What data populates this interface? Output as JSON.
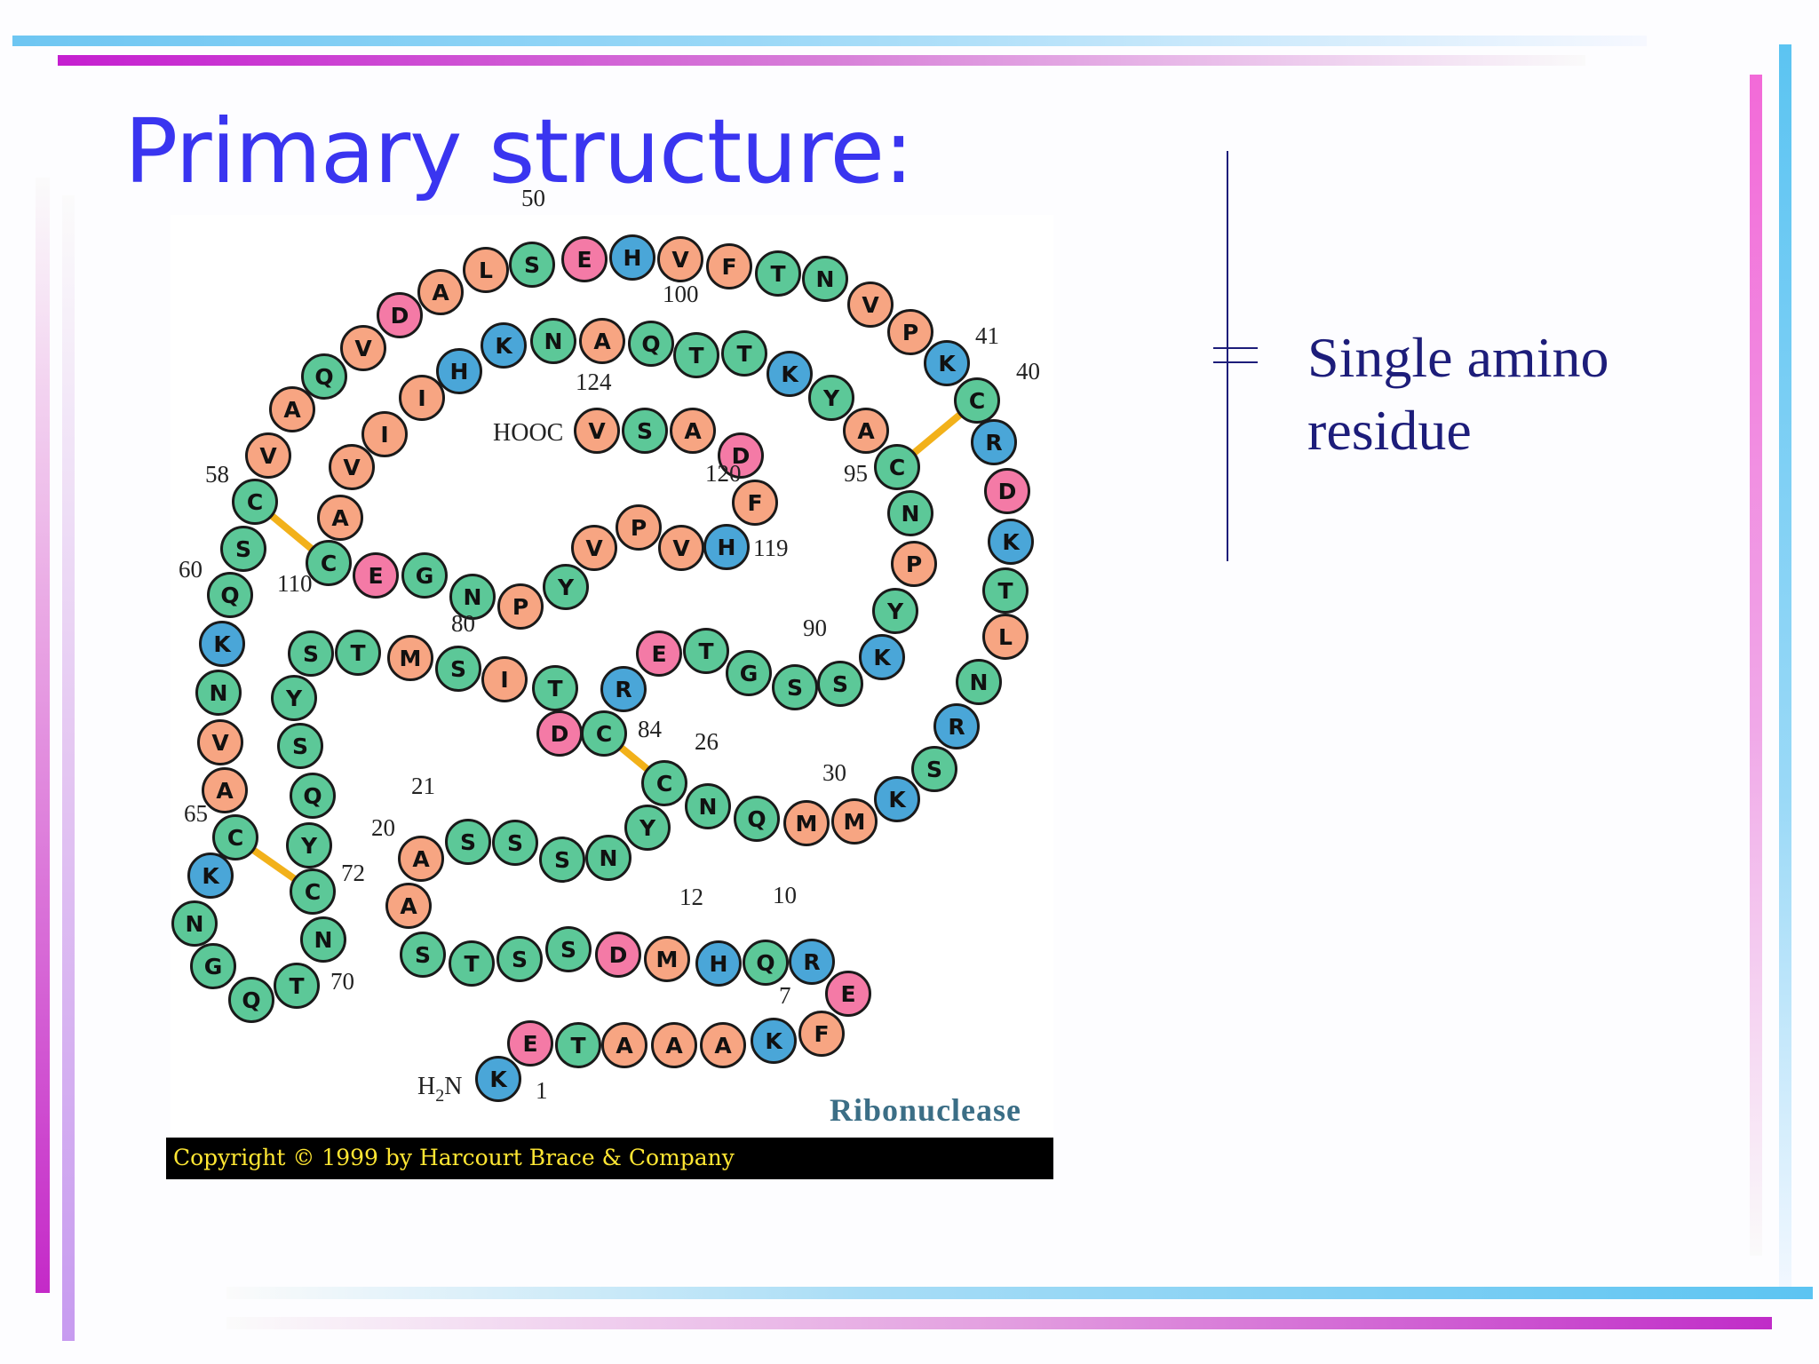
{
  "title": "Primary structure:",
  "annotation": "Single amino residue",
  "protein_name": "Ribonuclease",
  "copyright": "Copyright © 1999 by Harcourt Brace & Company",
  "n_terminus": "H2N",
  "c_terminus": "HOOC",
  "colors": {
    "title": "#3a35f0",
    "orange": "#f7a582",
    "green": "#5cc898",
    "blue": "#4aa6d8",
    "pink": "#f47aa6",
    "disulfide": "#f2b11a"
  },
  "residues": [
    {
      "letter": "K",
      "color": "blue",
      "num": "1"
    },
    {
      "letter": "E",
      "color": "pink"
    },
    {
      "letter": "T",
      "color": "green"
    },
    {
      "letter": "A",
      "color": "orange"
    },
    {
      "letter": "A",
      "color": "orange"
    },
    {
      "letter": "A",
      "color": "orange"
    },
    {
      "letter": "K",
      "color": "blue",
      "num": "7"
    },
    {
      "letter": "F",
      "color": "orange"
    },
    {
      "letter": "E",
      "color": "pink"
    },
    {
      "letter": "R",
      "color": "blue",
      "num": "10"
    },
    {
      "letter": "Q",
      "color": "green"
    },
    {
      "letter": "H",
      "color": "blue",
      "num": "12"
    },
    {
      "letter": "M",
      "color": "orange"
    },
    {
      "letter": "D",
      "color": "pink"
    },
    {
      "letter": "S",
      "color": "green"
    },
    {
      "letter": "S",
      "color": "green"
    },
    {
      "letter": "T",
      "color": "green"
    },
    {
      "letter": "S",
      "color": "green"
    },
    {
      "letter": "A",
      "color": "orange"
    },
    {
      "letter": "A",
      "color": "orange",
      "num": "20"
    },
    {
      "letter": "S",
      "color": "green",
      "num": "21"
    },
    {
      "letter": "S",
      "color": "green"
    },
    {
      "letter": "S",
      "color": "green"
    },
    {
      "letter": "N",
      "color": "green"
    },
    {
      "letter": "Y",
      "color": "green"
    },
    {
      "letter": "C",
      "color": "green",
      "num": "26"
    },
    {
      "letter": "N",
      "color": "green"
    },
    {
      "letter": "Q",
      "color": "green"
    },
    {
      "letter": "M",
      "color": "orange"
    },
    {
      "letter": "M",
      "color": "orange",
      "num": "30"
    },
    {
      "letter": "K",
      "color": "blue"
    },
    {
      "letter": "S",
      "color": "green"
    },
    {
      "letter": "R",
      "color": "blue"
    },
    {
      "letter": "N",
      "color": "green"
    },
    {
      "letter": "L",
      "color": "orange"
    },
    {
      "letter": "T",
      "color": "green"
    },
    {
      "letter": "K",
      "color": "blue"
    },
    {
      "letter": "D",
      "color": "pink"
    },
    {
      "letter": "R",
      "color": "blue"
    },
    {
      "letter": "C",
      "color": "green",
      "num": "40"
    },
    {
      "letter": "K",
      "color": "blue",
      "num": "41"
    },
    {
      "letter": "P",
      "color": "orange"
    },
    {
      "letter": "V",
      "color": "orange"
    },
    {
      "letter": "N",
      "color": "green"
    },
    {
      "letter": "T",
      "color": "green"
    },
    {
      "letter": "F",
      "color": "orange"
    },
    {
      "letter": "V",
      "color": "orange"
    },
    {
      "letter": "H",
      "color": "blue"
    },
    {
      "letter": "E",
      "color": "pink"
    },
    {
      "letter": "S",
      "color": "green",
      "num": "50"
    },
    {
      "letter": "L",
      "color": "orange"
    },
    {
      "letter": "A",
      "color": "orange"
    },
    {
      "letter": "D",
      "color": "pink"
    },
    {
      "letter": "V",
      "color": "orange"
    },
    {
      "letter": "Q",
      "color": "green"
    },
    {
      "letter": "A",
      "color": "orange"
    },
    {
      "letter": "V",
      "color": "orange"
    },
    {
      "letter": "C",
      "color": "green",
      "num": "58"
    },
    {
      "letter": "S",
      "color": "green"
    },
    {
      "letter": "Q",
      "color": "green",
      "num": "60"
    },
    {
      "letter": "K",
      "color": "blue"
    },
    {
      "letter": "N",
      "color": "green"
    },
    {
      "letter": "V",
      "color": "orange"
    },
    {
      "letter": "A",
      "color": "orange"
    },
    {
      "letter": "C",
      "color": "green",
      "num": "65"
    },
    {
      "letter": "K",
      "color": "blue"
    },
    {
      "letter": "N",
      "color": "green"
    },
    {
      "letter": "G",
      "color": "green"
    },
    {
      "letter": "Q",
      "color": "green"
    },
    {
      "letter": "T",
      "color": "green",
      "num": "70"
    },
    {
      "letter": "N",
      "color": "green"
    },
    {
      "letter": "C",
      "color": "green",
      "num": "72"
    },
    {
      "letter": "Y",
      "color": "green"
    },
    {
      "letter": "Q",
      "color": "green"
    },
    {
      "letter": "S",
      "color": "green"
    },
    {
      "letter": "Y",
      "color": "green"
    },
    {
      "letter": "S",
      "color": "green"
    },
    {
      "letter": "T",
      "color": "green"
    },
    {
      "letter": "M",
      "color": "orange"
    },
    {
      "letter": "S",
      "color": "green",
      "num": "80"
    },
    {
      "letter": "I",
      "color": "orange"
    },
    {
      "letter": "T",
      "color": "green"
    },
    {
      "letter": "D",
      "color": "pink"
    },
    {
      "letter": "C",
      "color": "green",
      "num": "84"
    },
    {
      "letter": "R",
      "color": "blue"
    },
    {
      "letter": "E",
      "color": "pink"
    },
    {
      "letter": "T",
      "color": "green"
    },
    {
      "letter": "G",
      "color": "green"
    },
    {
      "letter": "S",
      "color": "green"
    },
    {
      "letter": "S",
      "color": "green",
      "num": "90"
    },
    {
      "letter": "K",
      "color": "blue"
    },
    {
      "letter": "Y",
      "color": "green"
    },
    {
      "letter": "P",
      "color": "orange"
    },
    {
      "letter": "N",
      "color": "green"
    },
    {
      "letter": "C",
      "color": "green",
      "num": "95"
    },
    {
      "letter": "A",
      "color": "orange"
    },
    {
      "letter": "Y",
      "color": "green"
    },
    {
      "letter": "K",
      "color": "blue"
    },
    {
      "letter": "T",
      "color": "green"
    },
    {
      "letter": "T",
      "color": "green",
      "num": "100"
    },
    {
      "letter": "Q",
      "color": "green"
    },
    {
      "letter": "A",
      "color": "orange"
    },
    {
      "letter": "N",
      "color": "green"
    },
    {
      "letter": "K",
      "color": "blue"
    },
    {
      "letter": "H",
      "color": "blue"
    },
    {
      "letter": "I",
      "color": "orange"
    },
    {
      "letter": "I",
      "color": "orange"
    },
    {
      "letter": "V",
      "color": "orange"
    },
    {
      "letter": "A",
      "color": "orange"
    },
    {
      "letter": "C",
      "color": "green",
      "num": "110"
    },
    {
      "letter": "E",
      "color": "pink"
    },
    {
      "letter": "G",
      "color": "green"
    },
    {
      "letter": "N",
      "color": "green"
    },
    {
      "letter": "P",
      "color": "orange"
    },
    {
      "letter": "Y",
      "color": "green"
    },
    {
      "letter": "V",
      "color": "orange"
    },
    {
      "letter": "P",
      "color": "orange"
    },
    {
      "letter": "V",
      "color": "orange"
    },
    {
      "letter": "H",
      "color": "blue",
      "num": "119"
    },
    {
      "letter": "F",
      "color": "orange",
      "num": "120"
    },
    {
      "letter": "D",
      "color": "pink"
    },
    {
      "letter": "A",
      "color": "orange"
    },
    {
      "letter": "S",
      "color": "green"
    },
    {
      "letter": "V",
      "color": "orange",
      "num": "124"
    }
  ],
  "disulfide_bonds": [
    [
      26,
      84
    ],
    [
      40,
      95
    ],
    [
      58,
      110
    ],
    [
      65,
      72
    ]
  ]
}
